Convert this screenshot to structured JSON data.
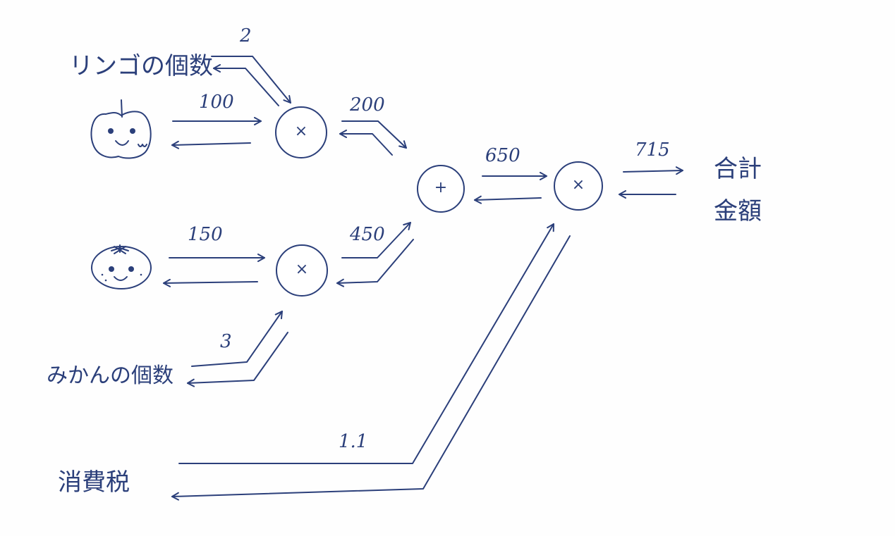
{
  "diagram": {
    "inputs": {
      "apple_count_label": "リンゴの個数",
      "orange_count_label": "みかんの個数",
      "tax_label": "消費税",
      "total_label_line1": "合計",
      "total_label_line2": "金額"
    },
    "values": {
      "apple_count": "2",
      "apple_price": "100",
      "apple_subtotal": "200",
      "orange_price": "150",
      "orange_count": "3",
      "orange_subtotal": "450",
      "sum": "650",
      "tax": "1.1",
      "total": "715"
    },
    "operators": {
      "mul_apple": "×",
      "mul_orange": "×",
      "add": "+",
      "mul_tax": "×"
    },
    "colors": {
      "ink": "#2b3f7a",
      "paper": "#fefefe"
    },
    "icons": [
      "apple-face-icon",
      "orange-face-icon"
    ]
  }
}
